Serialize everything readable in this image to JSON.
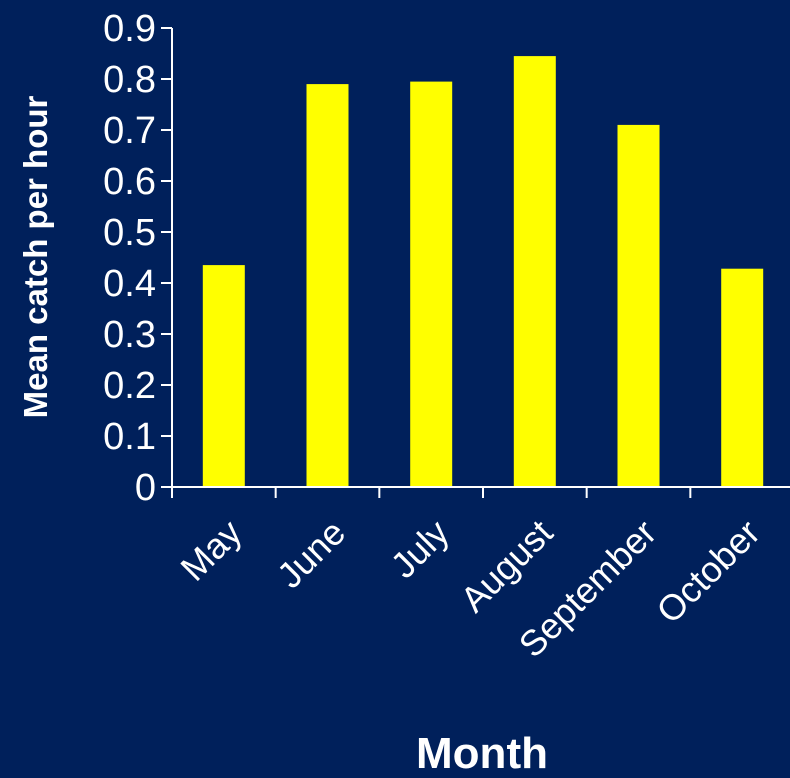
{
  "chart_data": {
    "type": "bar",
    "categories": [
      "May",
      "June",
      "July",
      "August",
      "September",
      "October"
    ],
    "values": [
      0.435,
      0.79,
      0.795,
      0.845,
      0.71,
      0.428
    ],
    "xlabel": "Month",
    "ylabel": "Mean catch per hour",
    "ylim": [
      0,
      0.9
    ],
    "yticks": [
      "0",
      "0.1",
      "0.2",
      "0.3",
      "0.4",
      "0.5",
      "0.6",
      "0.7",
      "0.8",
      "0.9"
    ],
    "grid": false,
    "legend": "none",
    "colors": {
      "background": "#00205b",
      "bar": "#ffff00",
      "axis": "#ffffff",
      "text": "#ffffff"
    }
  }
}
